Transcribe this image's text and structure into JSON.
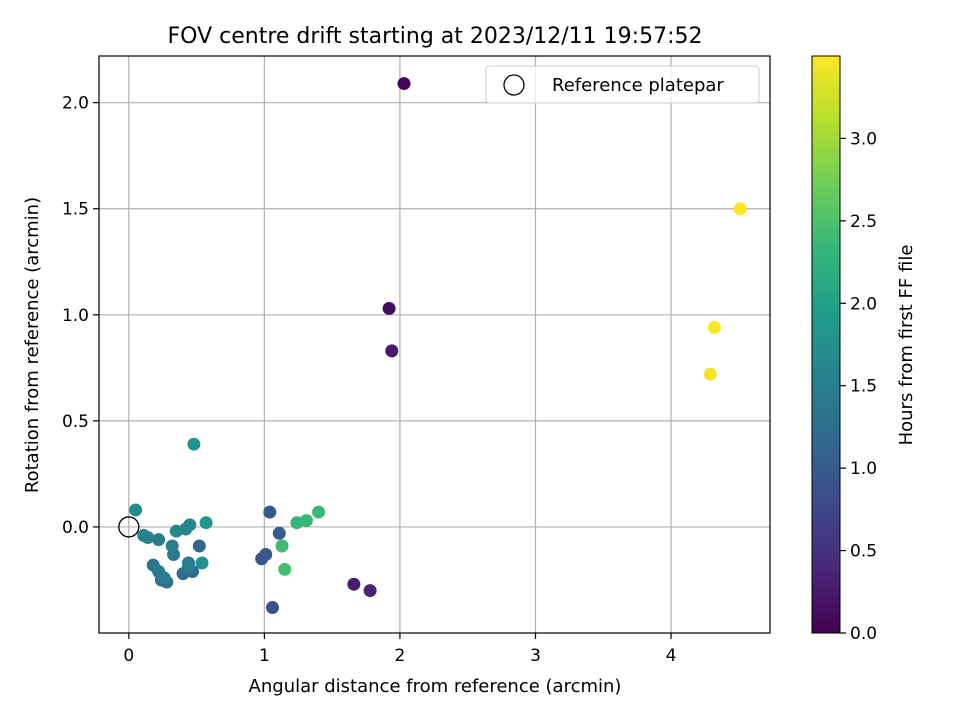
{
  "chart_data": {
    "type": "scatter",
    "title": "FOV centre drift starting at 2023/12/11 19:57:52",
    "xlabel": "Angular distance from reference (arcmin)",
    "ylabel": "Rotation from reference (arcmin)",
    "xlim": [
      -0.22,
      4.73
    ],
    "ylim": [
      -0.5,
      2.22
    ],
    "xticks": [
      0,
      1,
      2,
      3,
      4
    ],
    "xtick_labels": [
      "0",
      "1",
      "2",
      "3",
      "4"
    ],
    "yticks": [
      0.0,
      0.5,
      1.0,
      1.5,
      2.0
    ],
    "ytick_labels": [
      "0.0",
      "0.5",
      "1.0",
      "1.5",
      "2.0"
    ],
    "grid": true,
    "legend": {
      "placement": "top-right",
      "entries": [
        "Reference platepar"
      ]
    },
    "reference_point": {
      "x": 0,
      "y": 0,
      "label": "Reference platepar"
    },
    "colorbar": {
      "label": "Hours from first FF file",
      "min": 0.0,
      "max": 3.5,
      "ticks": [
        0.0,
        0.5,
        1.0,
        1.5,
        2.0,
        2.5,
        3.0
      ],
      "tick_labels": [
        "0.0",
        "0.5",
        "1.0",
        "1.5",
        "2.0",
        "2.5",
        "3.0"
      ],
      "colormap": "viridis",
      "stops": [
        "#440154",
        "#482878",
        "#3e4989",
        "#31688e",
        "#26828e",
        "#1f9e89",
        "#35b779",
        "#6ece58",
        "#b5de2b",
        "#fde725"
      ]
    },
    "points": [
      {
        "x": 2.03,
        "y": 2.09,
        "hours": 0.03
      },
      {
        "x": 1.92,
        "y": 1.03,
        "hours": 0.1
      },
      {
        "x": 1.94,
        "y": 0.83,
        "hours": 0.25
      },
      {
        "x": 1.66,
        "y": -0.27,
        "hours": 0.3
      },
      {
        "x": 1.78,
        "y": -0.3,
        "hours": 0.35
      },
      {
        "x": 1.06,
        "y": -0.38,
        "hours": 0.85
      },
      {
        "x": 0.98,
        "y": -0.15,
        "hours": 0.9
      },
      {
        "x": 1.01,
        "y": -0.13,
        "hours": 0.95
      },
      {
        "x": 1.04,
        "y": 0.07,
        "hours": 0.95
      },
      {
        "x": 1.11,
        "y": -0.03,
        "hours": 1.0
      },
      {
        "x": 0.52,
        "y": -0.09,
        "hours": 1.15
      },
      {
        "x": 0.47,
        "y": -0.21,
        "hours": 1.2
      },
      {
        "x": 0.4,
        "y": -0.22,
        "hours": 1.25
      },
      {
        "x": 0.24,
        "y": -0.25,
        "hours": 1.3
      },
      {
        "x": 0.28,
        "y": -0.26,
        "hours": 1.3
      },
      {
        "x": 0.18,
        "y": -0.18,
        "hours": 1.35
      },
      {
        "x": 0.22,
        "y": -0.21,
        "hours": 1.4
      },
      {
        "x": 0.44,
        "y": -0.17,
        "hours": 1.4
      },
      {
        "x": 0.26,
        "y": -0.24,
        "hours": 1.45
      },
      {
        "x": 0.33,
        "y": -0.13,
        "hours": 1.45
      },
      {
        "x": 0.32,
        "y": -0.09,
        "hours": 1.5
      },
      {
        "x": 0.44,
        "y": -0.19,
        "hours": 1.5
      },
      {
        "x": 0.22,
        "y": -0.06,
        "hours": 1.5
      },
      {
        "x": 0.11,
        "y": -0.04,
        "hours": 1.55
      },
      {
        "x": 0.14,
        "y": -0.05,
        "hours": 1.55
      },
      {
        "x": 0.42,
        "y": -0.01,
        "hours": 1.6
      },
      {
        "x": 0.45,
        "y": 0.01,
        "hours": 1.65
      },
      {
        "x": 0.35,
        "y": -0.02,
        "hours": 1.65
      },
      {
        "x": 0.05,
        "y": 0.08,
        "hours": 1.7
      },
      {
        "x": 0.54,
        "y": -0.17,
        "hours": 1.75
      },
      {
        "x": 0.48,
        "y": 0.39,
        "hours": 1.8
      },
      {
        "x": 0.57,
        "y": 0.02,
        "hours": 1.85
      },
      {
        "x": 1.24,
        "y": 0.02,
        "hours": 2.3
      },
      {
        "x": 1.31,
        "y": 0.03,
        "hours": 2.35
      },
      {
        "x": 1.4,
        "y": 0.07,
        "hours": 2.35
      },
      {
        "x": 1.13,
        "y": -0.09,
        "hours": 2.4
      },
      {
        "x": 1.15,
        "y": -0.2,
        "hours": 2.45
      },
      {
        "x": 4.29,
        "y": 0.72,
        "hours": 3.45
      },
      {
        "x": 4.32,
        "y": 0.94,
        "hours": 3.48
      },
      {
        "x": 4.51,
        "y": 1.5,
        "hours": 3.5
      }
    ]
  }
}
